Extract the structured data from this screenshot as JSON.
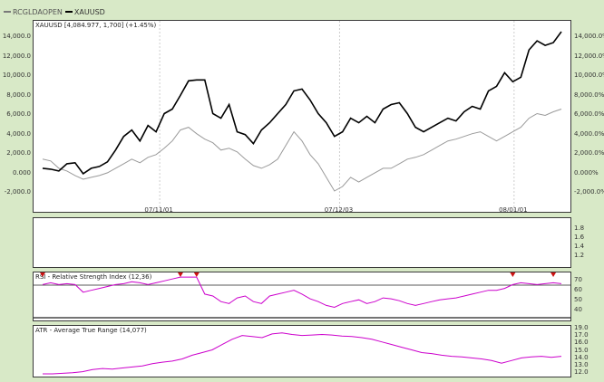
{
  "legend": [
    {
      "label": "RCGLDAOPEN",
      "color": "#7a7a7a"
    },
    {
      "label": "XAUUSD",
      "color": "#000000"
    }
  ],
  "price_panel": {
    "label": "XAUUSD [4,084.977, 1,700] (+1.45%)",
    "left_ticks": [
      "14,000.0",
      "12,000.0",
      "10,000.0",
      "8,000.0",
      "6,000.0",
      "4,000.0",
      "2,000.0",
      "0.000",
      "-2,000.0"
    ],
    "right_ticks": [
      "14,000.0%",
      "12,000.0%",
      "10,000.0%",
      "8,000.0%",
      "6,000.0%",
      "4,000.0%",
      "2,000.0%",
      "0.000%",
      "-2,000.0%"
    ],
    "x_labels": [
      "07/11/01",
      "07/12/03",
      "08/01/01"
    ]
  },
  "blank_panel": {
    "right_ticks": [
      "1.8",
      "1.6",
      "1.4",
      "1.2"
    ]
  },
  "rsi_panel": {
    "label": "RSI - Relative Strength Index (12,36)",
    "right_ticks": [
      "70",
      "60",
      "50",
      "40"
    ]
  },
  "atr_panel": {
    "label": "ATR - Average True Range (14,077)",
    "right_ticks": [
      "19.0",
      "17.0",
      "16.0",
      "15.0",
      "14.0",
      "13.0",
      "12.0"
    ]
  },
  "chart_data": [
    {
      "type": "line",
      "title": "XAUUSD",
      "ylim": [
        -2000,
        15000
      ],
      "series": [
        {
          "name": "XAUUSD",
          "color": "#000000",
          "values": [
            0,
            -100,
            -300,
            500,
            600,
            -600,
            0,
            200,
            700,
            2000,
            3500,
            4200,
            3000,
            4700,
            4000,
            6000,
            6500,
            8000,
            9600,
            9700,
            9700,
            6000,
            5500,
            7000,
            4000,
            3700,
            2700,
            4200,
            5000,
            6000,
            7000,
            8500,
            8700,
            7500,
            6000,
            5000,
            3500,
            4000,
            5500,
            5000,
            5700,
            5000,
            6500,
            7000,
            7200,
            6000,
            4500,
            4000,
            4500,
            5000,
            5500,
            5200,
            6200,
            6800,
            6500,
            8500,
            9000,
            10500,
            9500,
            10000,
            13000,
            14000,
            13500,
            13800,
            15000
          ]
        },
        {
          "name": "RCGLDAOPEN",
          "color": "#9a9a9a",
          "values": [
            1000,
            800,
            0,
            -300,
            -800,
            -1200,
            -1000,
            -800,
            -500,
            0,
            500,
            1000,
            600,
            1200,
            1500,
            2200,
            3000,
            4200,
            4500,
            3800,
            3200,
            2800,
            2000,
            2200,
            1800,
            1000,
            300,
            0,
            400,
            1000,
            2500,
            4000,
            3000,
            1500,
            500,
            -1000,
            -2500,
            -2000,
            -1000,
            -1500,
            -1000,
            -500,
            0,
            0,
            500,
            1000,
            1200,
            1500,
            2000,
            2500,
            3000,
            3200,
            3500,
            3800,
            4000,
            3500,
            3000,
            3500,
            4000,
            4500,
            5500,
            6000,
            5800,
            6200,
            6500
          ]
        }
      ]
    },
    {
      "type": "line",
      "title": "RSI - Relative Strength Index (12,36)",
      "ylim": [
        35,
        80
      ],
      "series": [
        {
          "name": "RSI",
          "color": "#cc00cc",
          "values": [
            70,
            72,
            70,
            71,
            70,
            62,
            64,
            66,
            68,
            70,
            71,
            73,
            72,
            70,
            72,
            74,
            76,
            78,
            78,
            78,
            60,
            58,
            52,
            50,
            56,
            58,
            52,
            50,
            58,
            60,
            62,
            64,
            60,
            55,
            52,
            48,
            46,
            50,
            52,
            54,
            50,
            52,
            56,
            55,
            53,
            50,
            48,
            50,
            52,
            54,
            55,
            56,
            58,
            60,
            62,
            64,
            64,
            66,
            70,
            72,
            71,
            70,
            71,
            72,
            71
          ]
        }
      ],
      "signals": [
        0,
        17,
        19,
        58,
        63
      ]
    },
    {
      "type": "line",
      "title": "ATR - Average True Range (14,077)",
      "ylim": [
        11,
        19.5
      ],
      "series": [
        {
          "name": "ATR",
          "color": "#cc00cc",
          "values": [
            11.0,
            11.0,
            11.1,
            11.2,
            11.4,
            11.8,
            12.0,
            11.9,
            12.1,
            12.3,
            12.5,
            12.9,
            13.2,
            13.4,
            13.8,
            14.5,
            15.0,
            15.5,
            16.5,
            17.5,
            18.2,
            18.0,
            17.8,
            18.5,
            18.7,
            18.4,
            18.2,
            18.3,
            18.4,
            18.3,
            18.1,
            18.0,
            17.8,
            17.5,
            17.0,
            16.5,
            16.0,
            15.5,
            15.0,
            14.8,
            14.5,
            14.3,
            14.2,
            14.0,
            13.8,
            13.5,
            13.0,
            13.5,
            14.0,
            14.2,
            14.3,
            14.1,
            14.3
          ]
        }
      ]
    }
  ]
}
